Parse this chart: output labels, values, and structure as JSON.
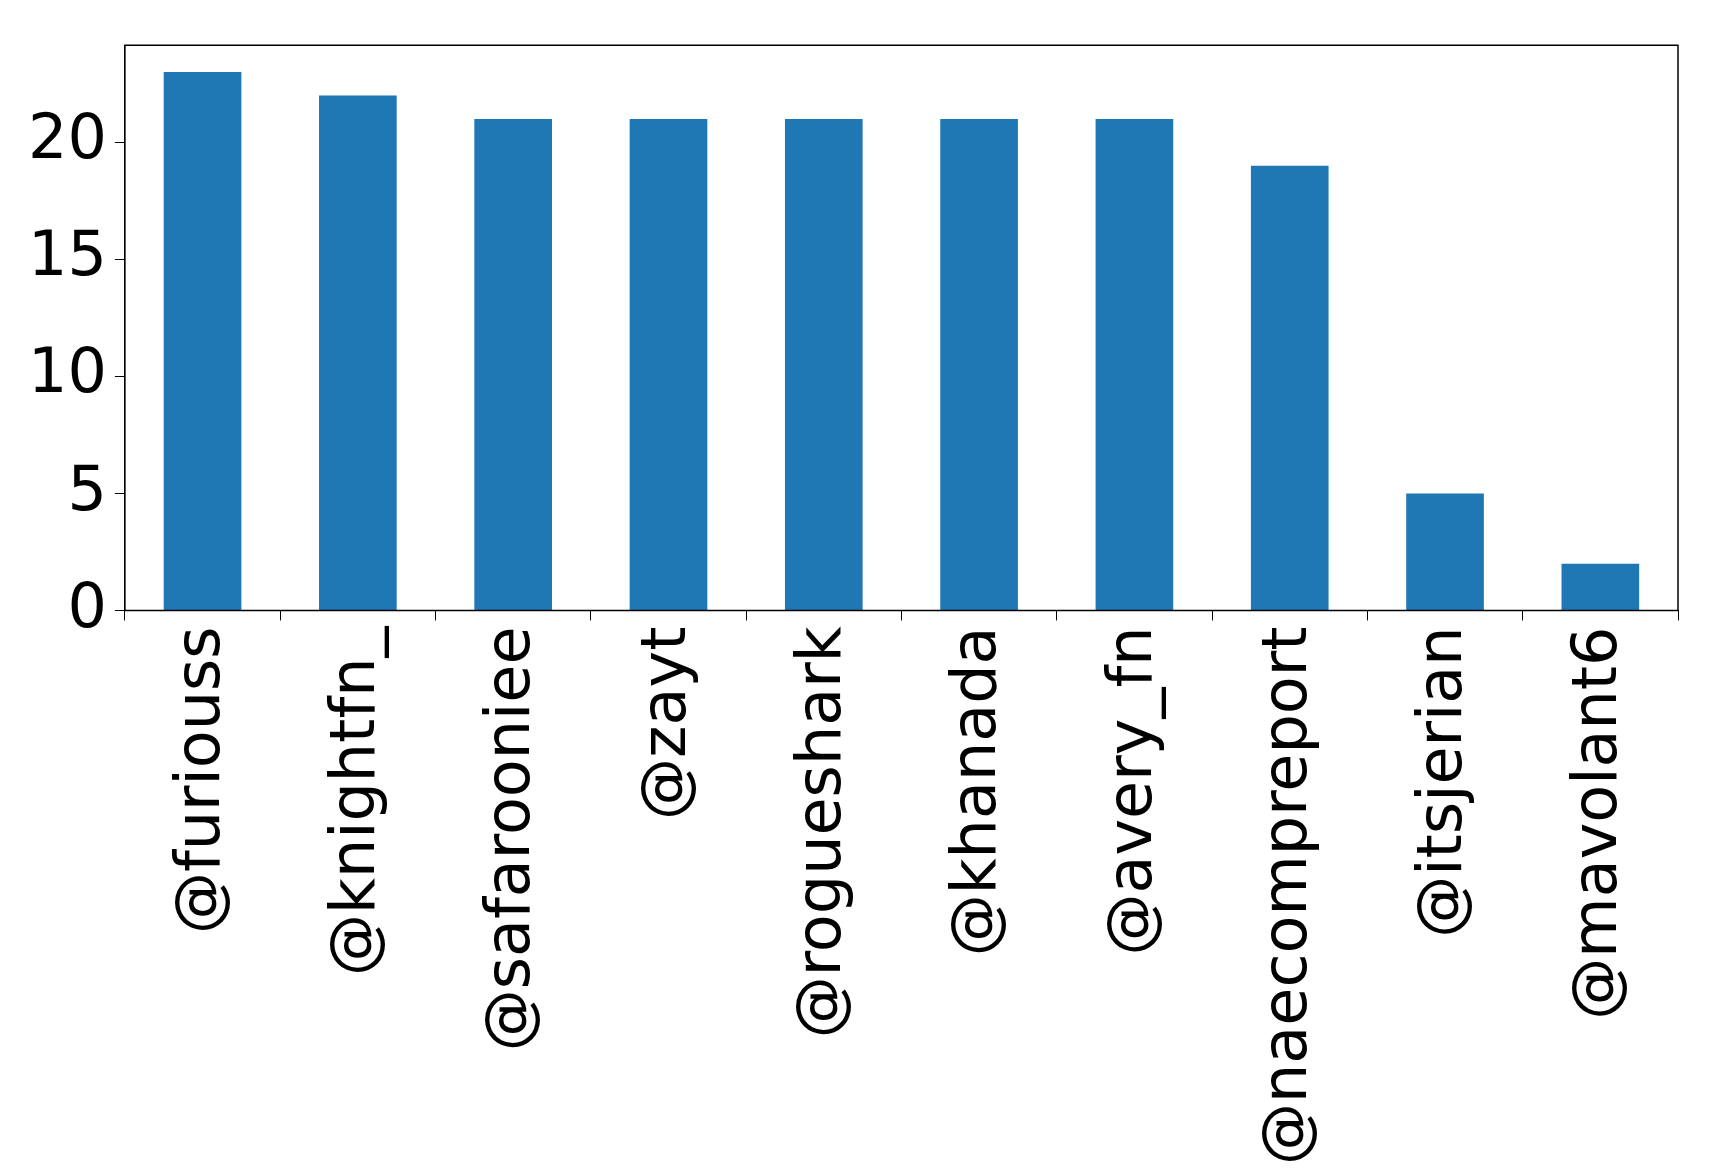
{
  "chart_data": {
    "type": "bar",
    "categories": [
      "@furiouss",
      "@knightfn_",
      "@safarooniee",
      "@zayt",
      "@rogueshark",
      "@khanada",
      "@avery_fn",
      "@naecompreport",
      "@itsjerian",
      "@mavolant6"
    ],
    "values": [
      23,
      22,
      21,
      21,
      21,
      21,
      21,
      19,
      5,
      2
    ],
    "color": "#1f77b4",
    "ylim": [
      0,
      24.15
    ],
    "yticks": [
      0,
      5,
      10,
      15,
      20
    ],
    "grid": false,
    "legend": false
  }
}
